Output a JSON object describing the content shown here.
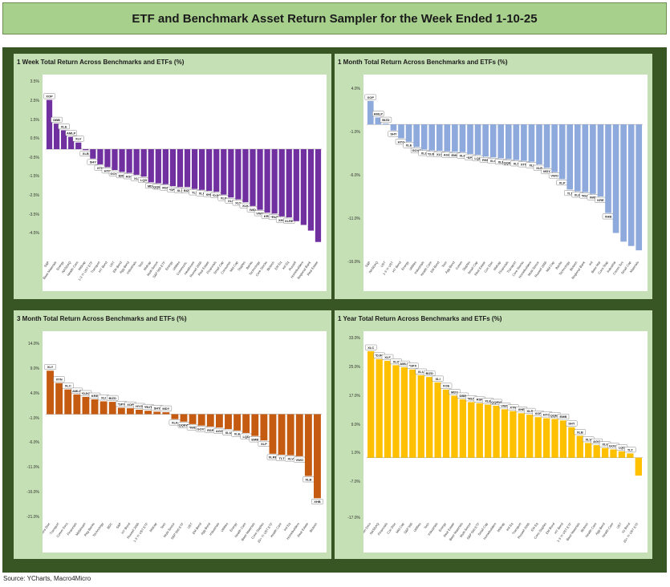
{
  "title": "ETF and Benchmark Asset Return Sampler for the Week Ended 1-10-25",
  "source": "Source: YCharts, Macro4Micro",
  "chart_data": [
    {
      "type": "bar",
      "title": "1 Week Total Return Across Benchmarks and ETFs (%)",
      "color": "#7030a0",
      "ylim": [
        -5.8,
        3.6
      ],
      "ticks": [
        3.5,
        2.5,
        1.5,
        0.5,
        -0.5,
        -1.5,
        -2.5,
        -3.5,
        -4.5
      ],
      "tick_labels": [
        "3.5%",
        "2.5%",
        "1.5%",
        "0.5%",
        "-0.5%",
        "-1.5%",
        "-2.5%",
        "-3.5%",
        "-4.5%"
      ],
      "categories": [
        "S&P",
        "Base Materials",
        "Energy",
        "NASDAQ",
        "Health Care",
        "Midcap",
        "1-3 Yr UST ETF",
        "Transport",
        "HY Bond",
        "UST",
        "EM Bond",
        "Agg Bond",
        "Industrials",
        "Tech",
        "Midcap",
        "Multi-Sector",
        "S&P 500 ETF",
        "Energy",
        "Utilities",
        "Communic.",
        "Healthcare",
        "Russell 2000",
        "Real Estate",
        "Financials",
        "Small Cap",
        "Consumer",
        "Mid Cap",
        "Staples",
        "Banks",
        "Technology",
        "Core Stocks",
        "Biotech",
        "EM Eq",
        "Intl Eq",
        "Russell",
        "Homebuilders",
        "Regional Bank",
        "Real Estate"
      ],
      "labels": [
        "XOP",
        "DBB",
        "XLE",
        "AMLP",
        "XLV",
        "XLB",
        "SHY",
        "XTN",
        "HYG",
        "GOVT",
        "EMB",
        "AGG",
        "XLI",
        "LQD",
        "MDY",
        "QQEW",
        "RSP",
        "*SPX",
        "XLU",
        "BIZD",
        "TLT",
        "XLC",
        "XHB",
        "*DJIC",
        "XLP",
        "XLF",
        "XLY",
        "XLK",
        "IWD",
        "VWO",
        "KRE",
        "*RUT",
        "XHB",
        "XLRE",
        "",
        "",
        "",
        ""
      ],
      "values": [
        2.6,
        1.35,
        1.0,
        0.65,
        0.35,
        -0.05,
        -0.5,
        -0.8,
        -0.95,
        -1.1,
        -1.2,
        -1.25,
        -1.35,
        -1.45,
        -1.75,
        -1.8,
        -1.85,
        -1.95,
        -2.0,
        -2.0,
        -2.1,
        -2.15,
        -2.2,
        -2.25,
        -2.4,
        -2.55,
        -2.65,
        -2.8,
        -3.0,
        -3.2,
        -3.35,
        -3.4,
        -3.55,
        -3.6,
        -3.8,
        -4.0,
        -4.3,
        -4.9
      ]
    },
    {
      "type": "bar",
      "title": "1 Month Total Return Across Benchmarks and ETFs (%)",
      "color": "#8ea9db",
      "ylim": [
        -15.5,
        5.0
      ],
      "ticks": [
        4.0,
        -1.0,
        -6.0,
        -11.0,
        -16.0
      ],
      "tick_labels": [
        "4.0%",
        "-1.0%",
        "-6.0%",
        "-11.0%",
        "-16.0%"
      ],
      "categories": [
        "S&P",
        "NASDAQ",
        "UST",
        "1-3 Yr UST",
        "HY Bond",
        "Energy",
        "Utilities",
        "Industrials",
        "Health Care",
        "EM Bond",
        "Tech",
        "Agg Bond",
        "Comm",
        "Staples",
        "Small Cap",
        "Real Estate",
        "Con Disc",
        "Midcap",
        "Financials",
        "Transport",
        "Core Stocks",
        "Homebuilders",
        "Multi-Sector",
        "Russell 2000",
        "Mid Cap",
        "Banks",
        "Technology",
        "Biotech",
        "Regional Bank",
        "Intl",
        "Base Mat",
        "Cons Stap",
        "Industrial",
        "Comm Svc",
        "Small Cap",
        "Materials"
      ],
      "labels": [
        "XOP",
        "AMLP",
        "BIZD",
        "SHY",
        "HYG",
        "XLE",
        "GOVT",
        "XLU",
        "*DJIC",
        "XLV",
        "AGG",
        "EMB",
        "XLK",
        "*SPX",
        "LQD",
        "RSP",
        "XLC",
        "XLF",
        "QQEW",
        "XLY",
        "XTN",
        "XLI",
        "XLP",
        "MDY",
        "VWO",
        "XLP",
        "TLT",
        "XLB",
        "*RUT",
        "IWD",
        "KRE",
        "XHB",
        "",
        "",
        "",
        ""
      ],
      "values": [
        2.7,
        0.8,
        0.1,
        -0.7,
        -1.6,
        -2.0,
        -2.6,
        -2.9,
        -3.0,
        -3.05,
        -3.1,
        -3.15,
        -3.2,
        -3.4,
        -3.5,
        -3.7,
        -3.8,
        -3.9,
        -4.0,
        -4.1,
        -4.2,
        -4.3,
        -4.6,
        -5.0,
        -5.5,
        -6.3,
        -7.5,
        -7.7,
        -7.8,
        -8.0,
        -8.3,
        -10.2,
        -12.5,
        -13.5,
        -14.0,
        -14.5
      ]
    },
    {
      "type": "bar",
      "title": "3 Month Total Return Across Benchmarks and ETFs (%)",
      "color": "#c55a11",
      "ylim": [
        -21.5,
        15.5
      ],
      "ticks": [
        14.0,
        9.0,
        4.0,
        -1.0,
        -6.0,
        -11.0,
        -16.0,
        -21.0
      ],
      "tick_labels": [
        "14.0%",
        "9.0%",
        "4.0%",
        "-1.0%",
        "-6.0%",
        "-11.0%",
        "-16.0%",
        "-21.0%"
      ],
      "categories": [
        "Cons Disc",
        "Transport",
        "Comm Svcs",
        "Financials",
        "Midstream",
        "Reg Banks",
        "Technology",
        "BDC",
        "S&P",
        "HY Bond",
        "Russell 2000",
        "1-3 Yr UST ETF",
        "Midcap",
        "Tech",
        "Multi-Sector",
        "S&P 500 ETF",
        "UST",
        "EM Bond",
        "Agg Bond",
        "Industrials",
        "Utilities",
        "Energy",
        "Health Care",
        "Base Materials",
        "Cons Staples",
        "20+ Yr UST ETF",
        "Health Care",
        "Intl Eq",
        "Homebuilders",
        "Real Estate",
        "Biotech"
      ],
      "labels": [
        "XLY",
        "XTN",
        "XLC",
        "AMLP",
        "*DJIC",
        "KRE",
        "XLI",
        "BIZD",
        "*SPX",
        "XOP",
        "HYG",
        "*RUT",
        "SHY",
        "MDY",
        "XLK",
        "QQEW",
        "*IWD",
        "GOVT",
        "RSP",
        "AGG",
        "XLU",
        "XLE",
        "LQD",
        "EMB",
        "XLP",
        "XLRE",
        "TLT",
        "XLV",
        "VWO",
        "XLB",
        "XHB"
      ],
      "values": [
        8.8,
        6.3,
        5.0,
        4.0,
        3.5,
        3.0,
        2.6,
        2.5,
        1.3,
        1.2,
        0.9,
        0.7,
        0.5,
        0.4,
        -1.0,
        -1.5,
        -2.0,
        -2.3,
        -2.5,
        -2.7,
        -3.0,
        -3.3,
        -3.8,
        -4.4,
        -5.3,
        -8.0,
        -8.2,
        -8.3,
        -8.5,
        -12.5,
        -17.0
      ]
    },
    {
      "type": "bar",
      "title": "1 Year Total Return Across Benchmarks and ETFs (%)",
      "color": "#ffc000",
      "ylim": [
        -17.5,
        33.5
      ],
      "ticks": [
        33.0,
        25.0,
        17.0,
        9.0,
        1.0,
        -7.0,
        -17.0
      ],
      "tick_labels": [
        "33.0%",
        "25.0%",
        "17.0%",
        "9.0%",
        "1.0%",
        "-7.0%",
        "-17.0%"
      ],
      "categories": [
        "Comm Svcs",
        "NASDAQ",
        "Financials",
        "Con Disc",
        "Mid Cap",
        "S&P 500",
        "Utilities",
        "Tech",
        "Industrials",
        "Energy",
        "Real Estate",
        "Base Materials",
        "Multi-Sector",
        "S&P 500 ETF",
        "Small Cap",
        "Homebuilders",
        "Midcap",
        "Intl Eq",
        "Transport",
        "Russell 2000",
        "EM Eq",
        "Cons Staples",
        "EM Bond",
        "HY Bond",
        "1-3 Yr UST ETF",
        "Base Materials",
        "Biotech",
        "Health Care",
        "Agg Bond",
        "Health Care",
        "UST",
        "IG Bond",
        "20+ Yr UST ETF"
      ],
      "labels": [
        "XLC",
        "*DJIC",
        "XLF",
        "XLY",
        "AMLP",
        "*SPX",
        "XLU",
        "BIZD",
        "XLI",
        "XOE",
        "MDY",
        "DBB",
        "*RUT",
        "RSP",
        "XLE",
        "QQEW",
        "VWO",
        "XTN",
        "XHB",
        "XLP",
        "XOP",
        "HYG",
        "QQEV",
        "EMB",
        "SHY",
        "XLB",
        "XLV",
        "AGG",
        "XLV",
        "GOVT",
        "LQD",
        "TLT",
        ""
      ],
      "values": [
        29.7,
        27.5,
        27.0,
        25.8,
        25.2,
        24.6,
        23.0,
        22.5,
        21.0,
        19.0,
        17.3,
        16.3,
        15.5,
        15.2,
        14.8,
        14.5,
        13.5,
        13.0,
        12.4,
        12.0,
        11.3,
        11.0,
        10.8,
        10.4,
        8.5,
        6.1,
        4.1,
        3.5,
        2.7,
        2.3,
        1.8,
        1.2,
        -5.0
      ]
    }
  ]
}
